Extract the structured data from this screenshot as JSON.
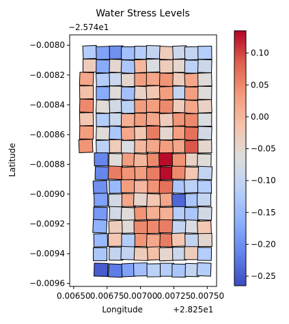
{
  "chart_data": {
    "type": "heatmap",
    "title": "Water Stress Levels",
    "xlabel": "Longitude",
    "ylabel": "Latitude",
    "x_offset_label": "+2.825e1",
    "y_offset_label": "−2.574e1",
    "xlim": [
      0.00647,
      0.00757
    ],
    "ylim": [
      -0.00962,
      -0.00793
    ],
    "xticks": [
      0.0065,
      0.00675,
      0.007,
      0.00725,
      0.0075
    ],
    "xtick_labels": [
      "0.00650",
      "0.00675",
      "0.00700",
      "0.00725",
      "0.00750"
    ],
    "yticks": [
      -0.008,
      -0.0082,
      -0.0084,
      -0.0086,
      -0.0088,
      -0.009,
      -0.0092,
      -0.0094,
      -0.0096
    ],
    "ytick_labels": [
      "−0.0080",
      "−0.0082",
      "−0.0084",
      "−0.0086",
      "−0.0088",
      "−0.0090",
      "−0.0092",
      "−0.0094",
      "−0.0096"
    ],
    "colormap": "coolwarm",
    "colorbar_range": [
      -0.265,
      0.135
    ],
    "colorbar_ticks": [
      0.1,
      0.05,
      0.0,
      -0.05,
      -0.1,
      -0.15,
      -0.2,
      -0.25
    ],
    "colorbar_tick_labels": [
      "0.10",
      "0.05",
      "0.00",
      "−0.05",
      "−0.10",
      "−0.15",
      "−0.20",
      "−0.25"
    ],
    "grid": false,
    "cells": [
      {
        "x": 0.006625,
        "y": -0.00805,
        "value": -0.12
      },
      {
        "x": 0.00672,
        "y": -0.00805,
        "value": -0.18
      },
      {
        "x": 0.006815,
        "y": -0.00805,
        "value": -0.2
      },
      {
        "x": 0.00691,
        "y": -0.00805,
        "value": -0.14
      },
      {
        "x": 0.007005,
        "y": -0.00805,
        "value": -0.12
      },
      {
        "x": 0.0071,
        "y": -0.00805,
        "value": -0.1
      },
      {
        "x": 0.007195,
        "y": -0.00805,
        "value": -0.03
      },
      {
        "x": 0.00729,
        "y": -0.00805,
        "value": -0.09
      },
      {
        "x": 0.007385,
        "y": -0.00805,
        "value": -0.1
      },
      {
        "x": 0.00748,
        "y": -0.00805,
        "value": -0.12
      },
      {
        "x": 0.006625,
        "y": -0.00814,
        "value": -0.03
      },
      {
        "x": 0.00672,
        "y": -0.00814,
        "value": -0.17
      },
      {
        "x": 0.006815,
        "y": -0.00814,
        "value": -0.05
      },
      {
        "x": 0.00691,
        "y": -0.00814,
        "value": -0.13
      },
      {
        "x": 0.007005,
        "y": -0.00814,
        "value": 0.0
      },
      {
        "x": 0.0071,
        "y": -0.00814,
        "value": -0.07
      },
      {
        "x": 0.007195,
        "y": -0.00814,
        "value": -0.03
      },
      {
        "x": 0.00729,
        "y": -0.00814,
        "value": -0.05
      },
      {
        "x": 0.007385,
        "y": -0.00814,
        "value": -0.11
      },
      {
        "x": 0.00748,
        "y": -0.00814,
        "value": -0.09
      },
      {
        "x": 0.0066,
        "y": -0.00823,
        "value": 0.02
      },
      {
        "x": 0.00672,
        "y": -0.00823,
        "value": -0.12
      },
      {
        "x": 0.006815,
        "y": -0.00823,
        "value": -0.09
      },
      {
        "x": 0.00691,
        "y": -0.00823,
        "value": -0.05
      },
      {
        "x": 0.007005,
        "y": -0.00823,
        "value": 0.03
      },
      {
        "x": 0.0071,
        "y": -0.00823,
        "value": 0.02
      },
      {
        "x": 0.007195,
        "y": -0.00823,
        "value": 0.04
      },
      {
        "x": 0.00729,
        "y": -0.00823,
        "value": -0.03
      },
      {
        "x": 0.007385,
        "y": -0.00823,
        "value": 0.02
      },
      {
        "x": 0.00748,
        "y": -0.00823,
        "value": -0.06
      },
      {
        "x": 0.0066,
        "y": -0.00832,
        "value": -0.01
      },
      {
        "x": 0.00672,
        "y": -0.00832,
        "value": -0.17
      },
      {
        "x": 0.006815,
        "y": -0.00832,
        "value": -0.06
      },
      {
        "x": 0.00691,
        "y": -0.00832,
        "value": -0.14
      },
      {
        "x": 0.007005,
        "y": -0.00832,
        "value": -0.04
      },
      {
        "x": 0.0071,
        "y": -0.00832,
        "value": -0.02
      },
      {
        "x": 0.007195,
        "y": -0.00832,
        "value": 0.03
      },
      {
        "x": 0.00729,
        "y": -0.00832,
        "value": -0.1
      },
      {
        "x": 0.007385,
        "y": -0.00832,
        "value": 0.03
      },
      {
        "x": 0.00748,
        "y": -0.00832,
        "value": -0.06
      },
      {
        "x": 0.0066,
        "y": -0.00841,
        "value": 0.05
      },
      {
        "x": 0.00672,
        "y": -0.00841,
        "value": -0.06
      },
      {
        "x": 0.006815,
        "y": -0.00841,
        "value": -0.08
      },
      {
        "x": 0.00691,
        "y": -0.00841,
        "value": -0.11
      },
      {
        "x": 0.007005,
        "y": -0.00841,
        "value": 0.03
      },
      {
        "x": 0.0071,
        "y": -0.00841,
        "value": 0.03
      },
      {
        "x": 0.007195,
        "y": -0.00841,
        "value": 0.05
      },
      {
        "x": 0.00729,
        "y": -0.00841,
        "value": -0.03
      },
      {
        "x": 0.007385,
        "y": -0.00841,
        "value": 0.02
      },
      {
        "x": 0.00748,
        "y": -0.00841,
        "value": -0.04
      },
      {
        "x": 0.0066,
        "y": -0.0085,
        "value": -0.02
      },
      {
        "x": 0.00672,
        "y": -0.0085,
        "value": -0.12
      },
      {
        "x": 0.006815,
        "y": -0.0085,
        "value": -0.09
      },
      {
        "x": 0.00691,
        "y": -0.0085,
        "value": 0.01
      },
      {
        "x": 0.007005,
        "y": -0.0085,
        "value": 0.03
      },
      {
        "x": 0.0071,
        "y": -0.0085,
        "value": 0.02
      },
      {
        "x": 0.007195,
        "y": -0.0085,
        "value": -0.03
      },
      {
        "x": 0.00729,
        "y": -0.0085,
        "value": 0.04
      },
      {
        "x": 0.007385,
        "y": -0.0085,
        "value": 0.05
      },
      {
        "x": 0.00748,
        "y": -0.0085,
        "value": -0.07
      },
      {
        "x": 0.0066,
        "y": -0.00859,
        "value": 0.03
      },
      {
        "x": 0.00672,
        "y": -0.00859,
        "value": -0.06
      },
      {
        "x": 0.006815,
        "y": -0.00859,
        "value": -0.13
      },
      {
        "x": 0.00691,
        "y": -0.00859,
        "value": 0.02
      },
      {
        "x": 0.007005,
        "y": -0.00859,
        "value": -0.02
      },
      {
        "x": 0.0071,
        "y": -0.00859,
        "value": 0.06
      },
      {
        "x": 0.007195,
        "y": -0.00859,
        "value": -0.05
      },
      {
        "x": 0.00729,
        "y": -0.00859,
        "value": 0.03
      },
      {
        "x": 0.007385,
        "y": -0.00859,
        "value": 0.07
      },
      {
        "x": 0.00748,
        "y": -0.00859,
        "value": -0.08
      },
      {
        "x": 0.006595,
        "y": -0.00868,
        "value": 0.04
      },
      {
        "x": 0.00672,
        "y": -0.00868,
        "value": -0.11
      },
      {
        "x": 0.006815,
        "y": -0.00868,
        "value": -0.03
      },
      {
        "x": 0.00691,
        "y": -0.00868,
        "value": -0.07
      },
      {
        "x": 0.007005,
        "y": -0.00868,
        "value": 0.0
      },
      {
        "x": 0.0071,
        "y": -0.00868,
        "value": 0.02
      },
      {
        "x": 0.007195,
        "y": -0.00868,
        "value": 0.03
      },
      {
        "x": 0.00729,
        "y": -0.00868,
        "value": 0.02
      },
      {
        "x": 0.007385,
        "y": -0.00868,
        "value": 0.09
      },
      {
        "x": 0.00748,
        "y": -0.00868,
        "value": -0.05
      },
      {
        "x": 0.00671,
        "y": -0.00877,
        "value": -0.21
      },
      {
        "x": 0.006815,
        "y": -0.00877,
        "value": -0.06
      },
      {
        "x": 0.00691,
        "y": -0.00877,
        "value": 0.03
      },
      {
        "x": 0.007005,
        "y": -0.00877,
        "value": 0.0
      },
      {
        "x": 0.0071,
        "y": -0.00877,
        "value": 0.05
      },
      {
        "x": 0.007195,
        "y": -0.00877,
        "value": 0.13
      },
      {
        "x": 0.00729,
        "y": -0.00877,
        "value": 0.04
      },
      {
        "x": 0.007385,
        "y": -0.00877,
        "value": -0.04
      },
      {
        "x": 0.00748,
        "y": -0.00877,
        "value": -0.06
      },
      {
        "x": 0.00671,
        "y": -0.00886,
        "value": -0.21
      },
      {
        "x": 0.006815,
        "y": -0.00886,
        "value": 0.06
      },
      {
        "x": 0.00691,
        "y": -0.00886,
        "value": 0.04
      },
      {
        "x": 0.007005,
        "y": -0.00886,
        "value": 0.03
      },
      {
        "x": 0.0071,
        "y": -0.00886,
        "value": 0.06
      },
      {
        "x": 0.007195,
        "y": -0.00886,
        "value": 0.13
      },
      {
        "x": 0.00729,
        "y": -0.00886,
        "value": 0.05
      },
      {
        "x": 0.007385,
        "y": -0.00886,
        "value": -0.02
      },
      {
        "x": 0.00748,
        "y": -0.00886,
        "value": -0.1
      },
      {
        "x": 0.0067,
        "y": -0.00895,
        "value": -0.2
      },
      {
        "x": 0.006815,
        "y": -0.00895,
        "value": -0.15
      },
      {
        "x": 0.00691,
        "y": -0.00895,
        "value": 0.03
      },
      {
        "x": 0.007005,
        "y": -0.00895,
        "value": 0.0
      },
      {
        "x": 0.0071,
        "y": -0.00895,
        "value": 0.04
      },
      {
        "x": 0.007195,
        "y": -0.00895,
        "value": 0.07
      },
      {
        "x": 0.00729,
        "y": -0.00895,
        "value": -0.13
      },
      {
        "x": 0.007385,
        "y": -0.00895,
        "value": -0.11
      },
      {
        "x": 0.00748,
        "y": -0.00895,
        "value": -0.12
      },
      {
        "x": 0.0067,
        "y": -0.00904,
        "value": -0.18
      },
      {
        "x": 0.006815,
        "y": -0.00904,
        "value": -0.08
      },
      {
        "x": 0.00691,
        "y": -0.00904,
        "value": 0.02
      },
      {
        "x": 0.007005,
        "y": -0.00904,
        "value": -0.05
      },
      {
        "x": 0.0071,
        "y": -0.00904,
        "value": -0.02
      },
      {
        "x": 0.007195,
        "y": -0.00904,
        "value": 0.02
      },
      {
        "x": 0.00729,
        "y": -0.00904,
        "value": -0.24
      },
      {
        "x": 0.007385,
        "y": -0.00904,
        "value": -0.13
      },
      {
        "x": 0.00748,
        "y": -0.00904,
        "value": -0.1
      },
      {
        "x": 0.0067,
        "y": -0.00913,
        "value": -0.19
      },
      {
        "x": 0.006815,
        "y": -0.00913,
        "value": -0.08
      },
      {
        "x": 0.00691,
        "y": -0.00913,
        "value": -0.06
      },
      {
        "x": 0.007005,
        "y": -0.00913,
        "value": 0.04
      },
      {
        "x": 0.0071,
        "y": -0.00913,
        "value": 0.01
      },
      {
        "x": 0.007195,
        "y": -0.00913,
        "value": 0.01
      },
      {
        "x": 0.00729,
        "y": -0.00913,
        "value": -0.12
      },
      {
        "x": 0.007385,
        "y": -0.00913,
        "value": -0.13
      },
      {
        "x": 0.00748,
        "y": -0.00913,
        "value": -0.08
      },
      {
        "x": 0.0067,
        "y": -0.00922,
        "value": -0.16
      },
      {
        "x": 0.006815,
        "y": -0.00922,
        "value": -0.03
      },
      {
        "x": 0.00691,
        "y": -0.00922,
        "value": -0.06
      },
      {
        "x": 0.007005,
        "y": -0.00922,
        "value": 0.05
      },
      {
        "x": 0.0071,
        "y": -0.00922,
        "value": 0.05
      },
      {
        "x": 0.007195,
        "y": -0.00922,
        "value": 0.06
      },
      {
        "x": 0.00729,
        "y": -0.00922,
        "value": -0.1
      },
      {
        "x": 0.007385,
        "y": -0.00922,
        "value": -0.07
      },
      {
        "x": 0.00748,
        "y": -0.00922,
        "value": -0.02
      },
      {
        "x": 0.0067,
        "y": -0.00931,
        "value": -0.15
      },
      {
        "x": 0.006815,
        "y": -0.00931,
        "value": -0.02
      },
      {
        "x": 0.00691,
        "y": -0.00931,
        "value": -0.12
      },
      {
        "x": 0.007005,
        "y": -0.00931,
        "value": 0.04
      },
      {
        "x": 0.0071,
        "y": -0.00931,
        "value": 0.02
      },
      {
        "x": 0.007195,
        "y": -0.00931,
        "value": 0.06
      },
      {
        "x": 0.00729,
        "y": -0.00931,
        "value": -0.02
      },
      {
        "x": 0.007385,
        "y": -0.00931,
        "value": -0.1
      },
      {
        "x": 0.00748,
        "y": -0.00931,
        "value": -0.05
      },
      {
        "x": 0.0067,
        "y": -0.0094,
        "value": -0.13
      },
      {
        "x": 0.006815,
        "y": -0.0094,
        "value": -0.1
      },
      {
        "x": 0.00691,
        "y": -0.0094,
        "value": -0.1
      },
      {
        "x": 0.007005,
        "y": -0.0094,
        "value": -0.03
      },
      {
        "x": 0.0071,
        "y": -0.0094,
        "value": -0.01
      },
      {
        "x": 0.007195,
        "y": -0.0094,
        "value": -0.05
      },
      {
        "x": 0.00729,
        "y": -0.0094,
        "value": -0.09
      },
      {
        "x": 0.007385,
        "y": -0.0094,
        "value": -0.03
      },
      {
        "x": 0.00748,
        "y": -0.0094,
        "value": -0.12
      },
      {
        "x": 0.0067,
        "y": -0.00951,
        "value": -0.25
      },
      {
        "x": 0.006815,
        "y": -0.00951,
        "value": -0.22
      },
      {
        "x": 0.00691,
        "y": -0.00951,
        "value": -0.18
      },
      {
        "x": 0.007005,
        "y": -0.00951,
        "value": -0.14
      },
      {
        "x": 0.0071,
        "y": -0.00951,
        "value": -0.11
      },
      {
        "x": 0.007195,
        "y": -0.00951,
        "value": -0.12
      },
      {
        "x": 0.00729,
        "y": -0.00951,
        "value": -0.13
      },
      {
        "x": 0.007385,
        "y": -0.00951,
        "value": -0.1
      },
      {
        "x": 0.00748,
        "y": -0.00951,
        "value": -0.12
      }
    ]
  }
}
